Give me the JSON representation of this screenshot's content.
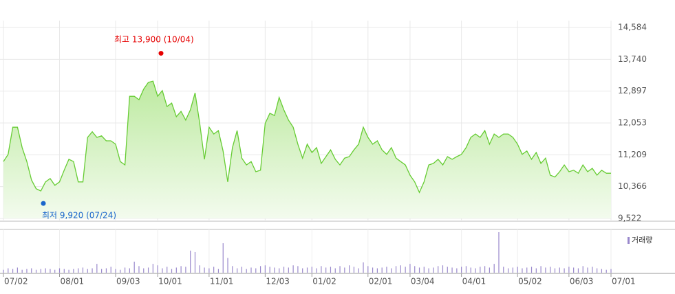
{
  "chart_data": {
    "type": "line",
    "categories": [
      "07/02",
      null,
      null,
      null,
      null,
      null,
      null,
      null,
      null,
      null,
      null,
      null,
      "08/01",
      null,
      null,
      null,
      null,
      null,
      null,
      null,
      null,
      null,
      null,
      null,
      "09/03",
      null,
      null,
      null,
      null,
      null,
      null,
      null,
      null,
      "10/01",
      null,
      null,
      null,
      null,
      null,
      null,
      null,
      null,
      null,
      null,
      "11/01",
      null,
      null,
      null,
      null,
      null,
      null,
      null,
      null,
      null,
      null,
      null,
      "12/03",
      null,
      null,
      null,
      null,
      null,
      null,
      null,
      null,
      null,
      "01/02",
      null,
      null,
      null,
      null,
      null,
      null,
      null,
      null,
      null,
      null,
      null,
      "02/01",
      null,
      null,
      null,
      null,
      null,
      null,
      null,
      null,
      "03/04",
      null,
      null,
      null,
      null,
      null,
      null,
      null,
      null,
      null,
      null,
      "04/01",
      null,
      null,
      null,
      null,
      null,
      null,
      null,
      null,
      null,
      null,
      null,
      "05/02",
      null,
      null,
      null,
      null,
      null,
      null,
      null,
      null,
      null,
      null,
      "06/03",
      null,
      null,
      null,
      null,
      null,
      null,
      null,
      null,
      "07/01"
    ],
    "series": [
      {
        "color": "#66cc33",
        "values": [
          11030,
          11220,
          11940,
          11940,
          11400,
          11030,
          10540,
          10310,
          10250,
          10490,
          10580,
          10400,
          10490,
          10800,
          11090,
          11030,
          10490,
          10490,
          11670,
          11820,
          11670,
          11710,
          11580,
          11580,
          11490,
          11030,
          10940,
          12760,
          12760,
          12670,
          12950,
          13130,
          13160,
          12760,
          12910,
          12490,
          12580,
          12220,
          12360,
          12130,
          12400,
          12850,
          12040,
          11090,
          11940,
          11760,
          11850,
          11310,
          10490,
          11400,
          11850,
          11120,
          10940,
          11030,
          10760,
          10800,
          12040,
          12310,
          12250,
          12730,
          12400,
          12130,
          11940,
          11490,
          11120,
          11490,
          11270,
          11400,
          10980,
          11160,
          11340,
          11090,
          10940,
          11120,
          11160,
          11340,
          11490,
          11940,
          11670,
          11490,
          11580,
          11340,
          11220,
          11400,
          11120,
          11030,
          10940,
          10670,
          10490,
          10210,
          10490,
          10940,
          10980,
          11090,
          10940,
          11160,
          11090,
          11160,
          11220,
          11400,
          11670,
          11760,
          11670,
          11850,
          11490,
          11760,
          11670,
          11760,
          11760,
          11670,
          11490,
          11220,
          11310,
          11090,
          11270,
          10980,
          11120,
          10670,
          10620,
          10760,
          10940,
          10760,
          10800,
          10720,
          10940,
          10760,
          10850,
          10670,
          10800,
          10720,
          10720
        ]
      }
    ],
    "volume": {
      "name": "거래량",
      "color": "#9988cc",
      "values": [
        4,
        6,
        5,
        7,
        4,
        5,
        6,
        4,
        5,
        6,
        5,
        4,
        6,
        5,
        4,
        5,
        6,
        7,
        5,
        6,
        12,
        5,
        6,
        8,
        5,
        4,
        7,
        6,
        15,
        9,
        6,
        7,
        12,
        10,
        6,
        8,
        5,
        7,
        9,
        8,
        30,
        28,
        10,
        7,
        6,
        8,
        5,
        40,
        20,
        9,
        6,
        8,
        5,
        7,
        6,
        9,
        10,
        8,
        7,
        6,
        8,
        7,
        10,
        9,
        6,
        7,
        8,
        6,
        9,
        7,
        8,
        6,
        9,
        7,
        10,
        8,
        6,
        14,
        9,
        7,
        6,
        7,
        8,
        6,
        9,
        10,
        8,
        12,
        9,
        7,
        8,
        6,
        7,
        9,
        10,
        8,
        7,
        6,
        8,
        9,
        7,
        6,
        8,
        9,
        7,
        12,
        55,
        8,
        6,
        7,
        8,
        6,
        7,
        8,
        6,
        9,
        7,
        8,
        6,
        7,
        6,
        8,
        7,
        6,
        9,
        7,
        8,
        6,
        5,
        4,
        5
      ]
    },
    "ylim": [
      9522,
      14584
    ],
    "yticks": [
      {
        "value": 9522,
        "label": "9,522"
      },
      {
        "value": 10366,
        "label": "10,366"
      },
      {
        "value": 11209,
        "label": "11,209"
      },
      {
        "value": 12053,
        "label": "12,053"
      },
      {
        "value": 12897,
        "label": "12,897"
      },
      {
        "value": 13740,
        "label": "13,740"
      },
      {
        "value": 14584,
        "label": "14,584"
      }
    ],
    "grid": true,
    "high": {
      "text": "최고 13,900 (10/04)",
      "value": 13900,
      "color": "#e60000"
    },
    "low": {
      "text": "최저 9,920 (07/24)",
      "value": 9920,
      "color": "#1a66cc"
    }
  }
}
